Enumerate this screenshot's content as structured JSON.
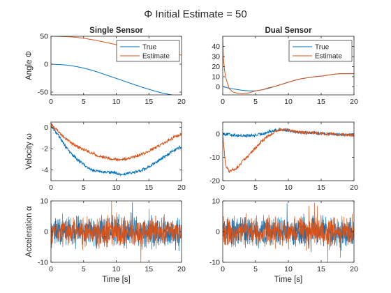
{
  "figure": {
    "suptitle": "Φ Initial Estimate = 50",
    "colors": {
      "true": "#0072BD",
      "estimate": "#D95319",
      "axis": "#262626",
      "background": "#ffffff"
    }
  },
  "chart_data": [
    {
      "type": "line",
      "title": "Single Sensor",
      "ylabel": "Angle Φ",
      "xlabel": "",
      "xlim": [
        0,
        20
      ],
      "ylim": [
        -55,
        50
      ],
      "xticks": [
        0,
        5,
        10,
        15,
        20
      ],
      "yticks": [
        -50,
        0,
        50
      ],
      "legend": {
        "position": "top-right",
        "entries": [
          "True",
          "Estimate"
        ]
      },
      "grid": false,
      "series": [
        {
          "name": "True",
          "color": "#0072BD",
          "x": [
            0,
            1,
            2,
            3,
            4,
            5,
            6,
            7,
            8,
            9,
            10,
            11,
            12,
            13,
            14,
            15,
            16,
            17,
            18,
            19,
            20
          ],
          "y": [
            0,
            -0.5,
            -1.2,
            -2.5,
            -4.5,
            -7,
            -10,
            -13.5,
            -17.5,
            -21.5,
            -25.5,
            -29.5,
            -33.5,
            -37.5,
            -41.5,
            -45,
            -48.5,
            -51.5,
            -54,
            -56,
            -57.5
          ]
        },
        {
          "name": "Estimate",
          "color": "#D95319",
          "x": [
            0,
            1,
            2,
            3,
            4,
            5,
            6,
            7,
            8,
            9,
            10,
            11,
            12,
            13,
            14,
            15,
            16,
            17,
            18,
            19,
            20
          ],
          "y": [
            50,
            49.8,
            49.5,
            49,
            48,
            46.5,
            44.5,
            42.5,
            40,
            37.5,
            35,
            32.5,
            30,
            27.5,
            25,
            23,
            21,
            19.5,
            18,
            17,
            16.5
          ]
        }
      ]
    },
    {
      "type": "line",
      "title": "Dual Sensor",
      "ylabel": "",
      "xlabel": "",
      "xlim": [
        0,
        20
      ],
      "ylim": [
        -8,
        50
      ],
      "xticks": [
        0,
        5,
        10,
        15,
        20
      ],
      "yticks": [
        0,
        10,
        20,
        30,
        40
      ],
      "legend": {
        "position": "top-right",
        "entries": [
          "True",
          "Estimate"
        ]
      },
      "grid": false,
      "series": [
        {
          "name": "True",
          "color": "#0072BD",
          "x": [
            0,
            0.5,
            1,
            2,
            3,
            4,
            5,
            6,
            7,
            8,
            9,
            10,
            11,
            12,
            13,
            14,
            15,
            16,
            17,
            18,
            19,
            20
          ],
          "y": [
            0,
            -0.5,
            -1.5,
            -2.5,
            -3.5,
            -4,
            -4,
            -3,
            -1.5,
            0.5,
            2.5,
            4.5,
            6.5,
            8,
            9,
            10,
            10.5,
            11.5,
            12.5,
            13,
            13,
            13
          ]
        },
        {
          "name": "Estimate",
          "color": "#D95319",
          "x": [
            0,
            0.1,
            0.3,
            0.5,
            0.8,
            1,
            1.5,
            2,
            3,
            4,
            5,
            6,
            7,
            8,
            9,
            10,
            11,
            12,
            13,
            14,
            15,
            16,
            17,
            18,
            19,
            20
          ],
          "y": [
            50,
            28,
            15,
            8,
            2,
            -2,
            -5,
            -6,
            -7,
            -6,
            -4,
            -3,
            -1,
            0.5,
            2.5,
            4.5,
            6.5,
            8,
            9,
            10,
            10.5,
            11.5,
            12.5,
            13,
            13,
            13
          ]
        }
      ]
    },
    {
      "type": "line",
      "title": "",
      "ylabel": "Velocity ω",
      "xlabel": "",
      "xlim": [
        0,
        20
      ],
      "ylim": [
        -5,
        0.5
      ],
      "xticks": [
        0,
        5,
        10,
        15,
        20
      ],
      "yticks": [
        -4,
        -2,
        0
      ],
      "grid": false,
      "series": [
        {
          "name": "True",
          "color": "#0072BD",
          "x": [
            0,
            1,
            2,
            3,
            4,
            5,
            6,
            7,
            8,
            9,
            10,
            11,
            12,
            13,
            14,
            15,
            16,
            17,
            18,
            19,
            20
          ],
          "y": [
            0.1,
            -0.6,
            -1.6,
            -2.4,
            -3.0,
            -3.5,
            -3.9,
            -4.1,
            -4.2,
            -4.2,
            -4.3,
            -4.4,
            -4.3,
            -4.2,
            -4.0,
            -3.7,
            -3.3,
            -2.9,
            -2.5,
            -2.1,
            -1.8
          ]
        },
        {
          "name": "Estimate",
          "color": "#D95319",
          "x": [
            0,
            1,
            2,
            3,
            4,
            5,
            6,
            7,
            8,
            9,
            10,
            11,
            12,
            13,
            14,
            15,
            16,
            17,
            18,
            19,
            20
          ],
          "y": [
            0.3,
            -0.3,
            -0.9,
            -1.4,
            -1.8,
            -2.1,
            -2.3,
            -2.6,
            -2.8,
            -2.9,
            -3.0,
            -3.0,
            -2.9,
            -2.7,
            -2.5,
            -2.2,
            -1.9,
            -1.6,
            -1.2,
            -0.9,
            -0.6
          ]
        }
      ]
    },
    {
      "type": "line",
      "title": "",
      "ylabel": "",
      "xlabel": "",
      "xlim": [
        0,
        20
      ],
      "ylim": [
        -20,
        5
      ],
      "xticks": [
        0,
        5,
        10,
        15,
        20
      ],
      "yticks": [
        -20,
        -10,
        0
      ],
      "grid": false,
      "series": [
        {
          "name": "True",
          "color": "#0072BD",
          "x": [
            0,
            1,
            2,
            3,
            4,
            5,
            6,
            7,
            8,
            9,
            10,
            11,
            12,
            13,
            14,
            15,
            16,
            17,
            18,
            19,
            20
          ],
          "y": [
            0,
            -0.3,
            -0.6,
            -0.8,
            -0.8,
            -0.6,
            0,
            0.8,
            1.5,
            1.8,
            1.5,
            1,
            0.6,
            0.5,
            0.4,
            0.2,
            0,
            -0.2,
            -0.3,
            -0.4,
            -0.5
          ]
        },
        {
          "name": "Estimate",
          "color": "#D95319",
          "x": [
            0,
            0.3,
            0.5,
            1,
            2,
            3,
            4,
            5,
            6,
            7,
            8,
            9,
            10,
            11,
            12,
            13,
            14,
            15,
            16,
            17,
            18,
            19,
            20
          ],
          "y": [
            0,
            -10,
            -14,
            -16,
            -15,
            -12,
            -9,
            -6,
            -3,
            -1,
            1,
            2,
            1.5,
            1,
            0.6,
            0.5,
            0.4,
            0.2,
            0,
            -0.2,
            -0.3,
            -0.4,
            -0.5
          ]
        }
      ]
    },
    {
      "type": "line",
      "title": "",
      "ylabel": "Acceleration α",
      "xlabel": "Time [s]",
      "xlim": [
        0,
        20
      ],
      "ylim": [
        -10,
        10
      ],
      "xticks": [
        0,
        5,
        10,
        15,
        20
      ],
      "yticks": [
        -10,
        0,
        10
      ],
      "grid": false,
      "series": [
        {
          "name": "True",
          "color": "#0072BD",
          "x": [
            0,
            20
          ],
          "y": [
            0,
            0
          ],
          "noise_amplitude": 4
        },
        {
          "name": "Estimate",
          "color": "#D95319",
          "x": [
            0,
            20
          ],
          "y": [
            0,
            0
          ],
          "noise_amplitude": 4
        }
      ]
    },
    {
      "type": "line",
      "title": "",
      "ylabel": "",
      "xlabel": "Time [s]",
      "xlim": [
        0,
        20
      ],
      "ylim": [
        -10,
        10
      ],
      "xticks": [
        0,
        5,
        10,
        15,
        20
      ],
      "yticks": [
        -10,
        0,
        10
      ],
      "grid": false,
      "series": [
        {
          "name": "True",
          "color": "#0072BD",
          "x": [
            0,
            20
          ],
          "y": [
            0,
            0
          ],
          "noise_amplitude": 4
        },
        {
          "name": "Estimate",
          "color": "#D95319",
          "x": [
            0,
            20
          ],
          "y": [
            0,
            0
          ],
          "noise_amplitude": 4
        }
      ]
    }
  ]
}
